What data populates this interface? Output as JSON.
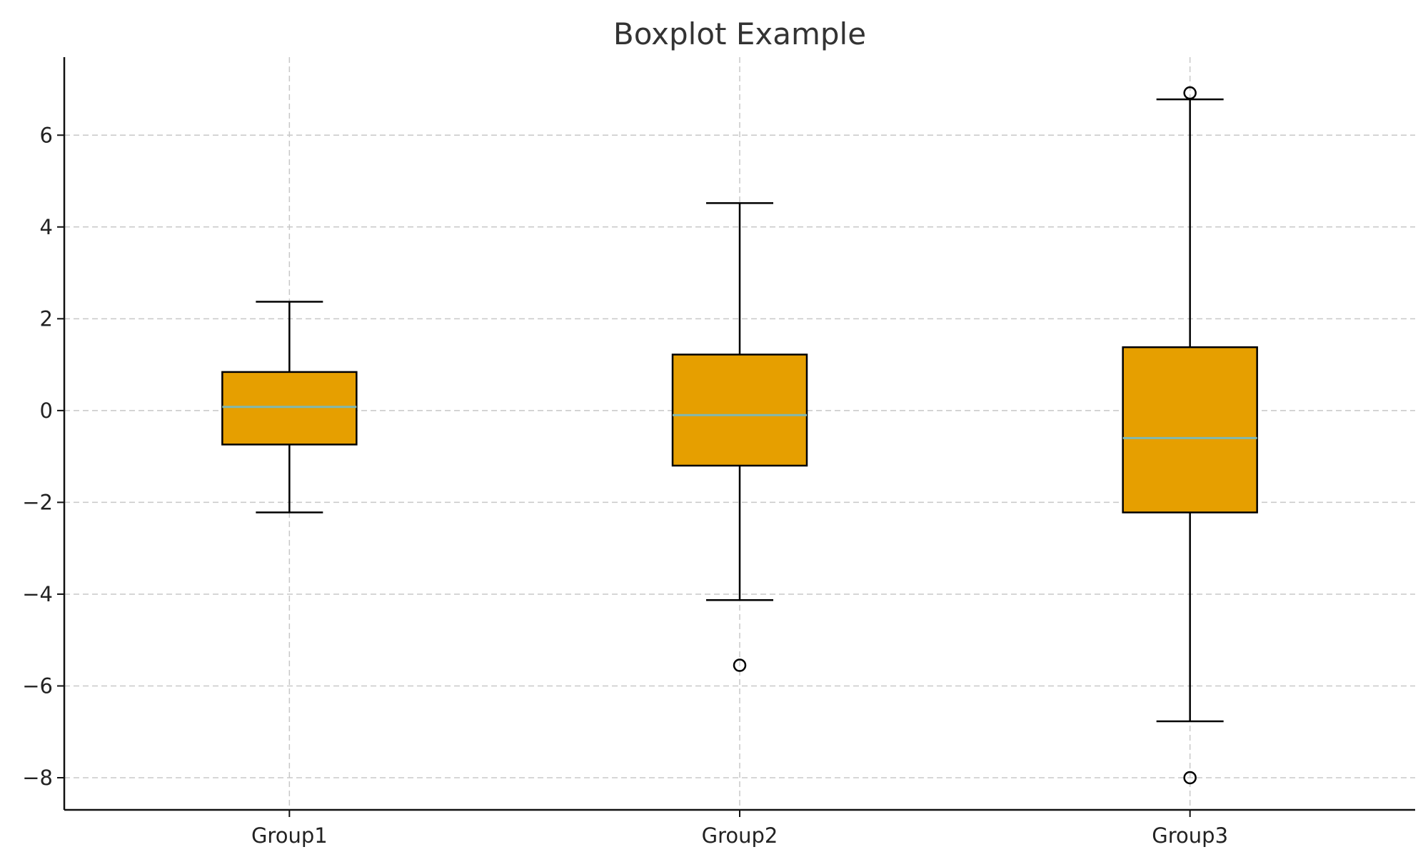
{
  "chart_data": {
    "type": "boxplot",
    "title": "Boxplot Example",
    "xlabel": "",
    "ylabel": "",
    "ylim": [
      -8.7,
      7.7
    ],
    "yticks": [
      -8,
      -6,
      -4,
      -2,
      0,
      2,
      4,
      6
    ],
    "ytick_labels": [
      "−8",
      "−6",
      "−4",
      "−2",
      "0",
      "2",
      "4",
      "6"
    ],
    "grid": true,
    "categories": [
      "Group1",
      "Group2",
      "Group3"
    ],
    "boxes": [
      {
        "label": "Group1",
        "whisker_low": -2.22,
        "q1": -0.74,
        "median": 0.08,
        "q3": 0.84,
        "whisker_high": 2.37,
        "fliers": []
      },
      {
        "label": "Group2",
        "whisker_low": -4.13,
        "q1": -1.2,
        "median": -0.1,
        "q3": 1.22,
        "whisker_high": 4.52,
        "fliers": [
          -5.55
        ]
      },
      {
        "label": "Group3",
        "whisker_low": -6.77,
        "q1": -2.22,
        "median": -0.6,
        "q3": 1.38,
        "whisker_high": 6.78,
        "fliers": [
          6.92,
          -8.0
        ]
      }
    ],
    "colors": {
      "box_fill": "#E69F00",
      "median": "#7FB8B3",
      "outline": "#000000",
      "grid": "#C8C8C8"
    }
  }
}
